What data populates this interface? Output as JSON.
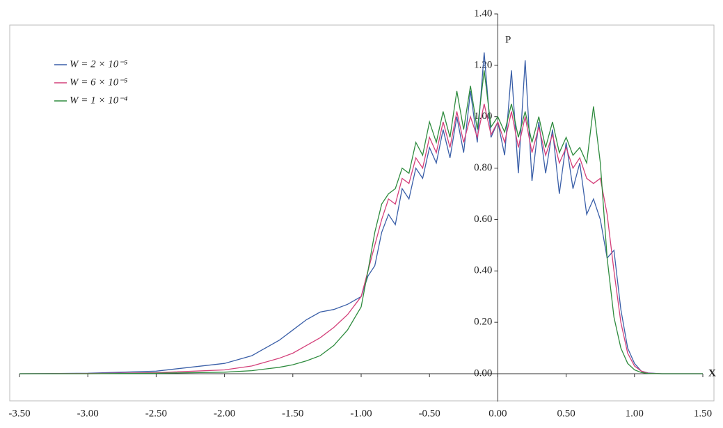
{
  "chart_data": {
    "type": "line",
    "x_label": "X",
    "y_label": "P",
    "x": [
      -3.5,
      -3.0,
      -2.5,
      -2.0,
      -1.8,
      -1.6,
      -1.5,
      -1.4,
      -1.3,
      -1.2,
      -1.1,
      -1.0,
      -0.95,
      -0.9,
      -0.85,
      -0.8,
      -0.75,
      -0.7,
      -0.65,
      -0.6,
      -0.55,
      -0.5,
      -0.45,
      -0.4,
      -0.35,
      -0.3,
      -0.25,
      -0.2,
      -0.15,
      -0.1,
      -0.05,
      0,
      0.05,
      0.1,
      0.15,
      0.2,
      0.25,
      0.3,
      0.35,
      0.4,
      0.45,
      0.5,
      0.55,
      0.6,
      0.65,
      0.7,
      0.75,
      0.8,
      0.85,
      0.9,
      0.95,
      1.0,
      1.05,
      1.1,
      1.2,
      1.5
    ],
    "series": [
      {
        "name": "W = 2 × 10⁻⁵",
        "color": "#3a5fa8",
        "values": [
          0,
          0.002,
          0.01,
          0.04,
          0.07,
          0.13,
          0.17,
          0.21,
          0.24,
          0.25,
          0.27,
          0.3,
          0.38,
          0.42,
          0.55,
          0.62,
          0.58,
          0.72,
          0.68,
          0.8,
          0.76,
          0.88,
          0.82,
          0.95,
          0.84,
          1.0,
          0.86,
          1.1,
          0.9,
          1.25,
          0.92,
          0.98,
          0.85,
          1.18,
          0.78,
          1.22,
          0.75,
          0.98,
          0.78,
          0.95,
          0.7,
          0.9,
          0.72,
          0.82,
          0.62,
          0.68,
          0.6,
          0.45,
          0.48,
          0.25,
          0.1,
          0.04,
          0.01,
          0.003,
          0,
          0
        ]
      },
      {
        "name": "W = 6 × 10⁻⁵",
        "color": "#d4407a",
        "values": [
          0,
          0.001,
          0.004,
          0.015,
          0.03,
          0.06,
          0.08,
          0.11,
          0.14,
          0.18,
          0.23,
          0.3,
          0.4,
          0.5,
          0.6,
          0.68,
          0.66,
          0.76,
          0.74,
          0.84,
          0.8,
          0.92,
          0.86,
          0.98,
          0.88,
          1.02,
          0.9,
          1.0,
          0.92,
          1.05,
          0.93,
          0.98,
          0.9,
          1.02,
          0.88,
          1.0,
          0.86,
          0.96,
          0.85,
          0.93,
          0.82,
          0.88,
          0.8,
          0.84,
          0.76,
          0.74,
          0.76,
          0.62,
          0.4,
          0.2,
          0.08,
          0.03,
          0.01,
          0.002,
          0,
          0
        ]
      },
      {
        "name": "W = 1 × 10⁻⁴",
        "color": "#2e8b3e",
        "values": [
          0,
          0,
          0.002,
          0.006,
          0.012,
          0.025,
          0.035,
          0.05,
          0.07,
          0.11,
          0.17,
          0.26,
          0.4,
          0.55,
          0.66,
          0.7,
          0.72,
          0.8,
          0.78,
          0.9,
          0.85,
          0.98,
          0.9,
          1.02,
          0.92,
          1.1,
          0.95,
          1.12,
          0.95,
          1.18,
          0.96,
          1.0,
          0.94,
          1.05,
          0.92,
          1.02,
          0.9,
          1.0,
          0.88,
          0.98,
          0.86,
          0.92,
          0.85,
          0.88,
          0.82,
          1.04,
          0.82,
          0.45,
          0.22,
          0.1,
          0.04,
          0.015,
          0.005,
          0.001,
          0,
          0
        ]
      }
    ],
    "xlim": [
      -3.5,
      1.5
    ],
    "ylim": [
      0,
      1.4
    ],
    "xticks": [
      {
        "value": -3.5,
        "label": "-3.50"
      },
      {
        "value": -3,
        "label": "-3.00"
      },
      {
        "value": -2.5,
        "label": "-2.50"
      },
      {
        "value": -2,
        "label": "-2.00"
      },
      {
        "value": -1.5,
        "label": "-1.50"
      },
      {
        "value": -1,
        "label": "-1.00"
      },
      {
        "value": -0.5,
        "label": "-0.50"
      },
      {
        "value": 0,
        "label": "0.00"
      },
      {
        "value": 0.5,
        "label": "0.50"
      },
      {
        "value": 1,
        "label": "1.00"
      },
      {
        "value": 1.5,
        "label": "1.50"
      }
    ],
    "yticks": [
      {
        "value": 0,
        "label": "0.00"
      },
      {
        "value": 0.2,
        "label": "0.20"
      },
      {
        "value": 0.4,
        "label": "0.40"
      },
      {
        "value": 0.6,
        "label": "0.60"
      },
      {
        "value": 0.8,
        "label": "0.80"
      },
      {
        "value": 1,
        "label": "1.00"
      },
      {
        "value": 1.2,
        "label": "1.20"
      },
      {
        "value": 1.4,
        "label": "1.40"
      }
    ],
    "legend": "upper-left"
  }
}
